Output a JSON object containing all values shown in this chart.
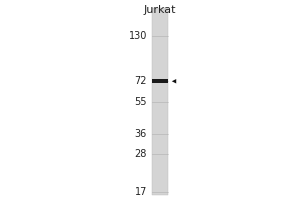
{
  "bg_color": "#ffffff",
  "lane_label": "Jurkat",
  "mw_markers": [
    130,
    72,
    55,
    36,
    28,
    17
  ],
  "band_mw": 72,
  "label_color": "#222222",
  "band_color": "#1a1a1a",
  "lane_color": "#d8d8d8",
  "arrow_color": "#111111",
  "log_min": 1.230448921,
  "log_max": 2.176091259,
  "marker_band_color": "#aaaaaa",
  "lane_faint_band_color": "#b0b0b0"
}
